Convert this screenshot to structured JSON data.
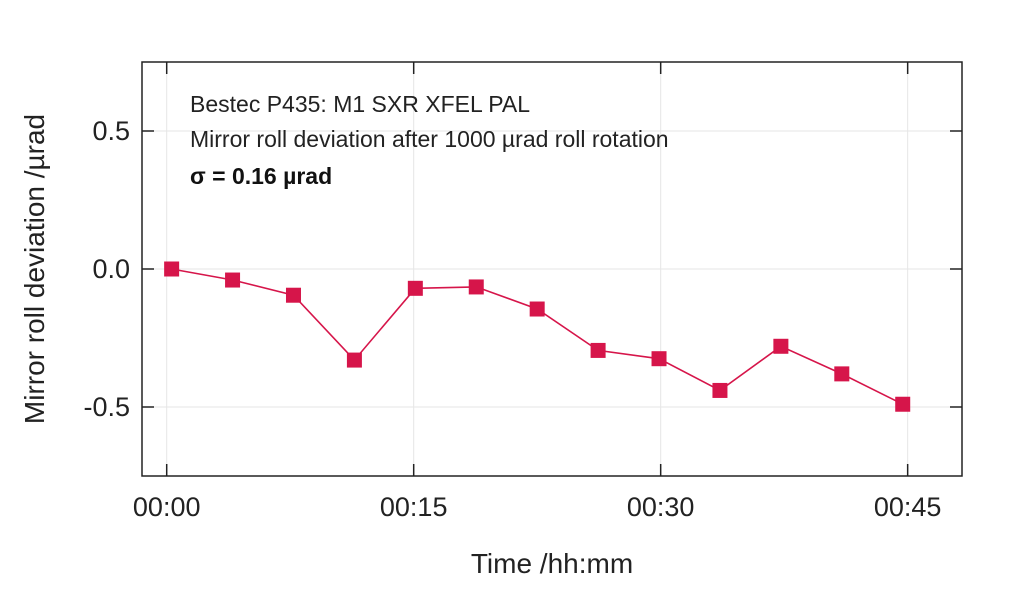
{
  "chart_data": {
    "type": "line",
    "xlabel": "Time /hh:mm",
    "ylabel": "Mirror roll deviation /µrad",
    "xlim": [
      -1.5,
      48.3
    ],
    "ylim": [
      -0.75,
      0.75
    ],
    "x_ticks": [
      {
        "value": 0,
        "label": "00:00"
      },
      {
        "value": 15,
        "label": "00:15"
      },
      {
        "value": 30,
        "label": "00:30"
      },
      {
        "value": 45,
        "label": "00:45"
      }
    ],
    "y_ticks": [
      {
        "value": 0.5,
        "label": "0.5"
      },
      {
        "value": 0.0,
        "label": "0.0"
      },
      {
        "value": -0.5,
        "label": "-0.5"
      }
    ],
    "grid": true,
    "annotations": [
      "Bestec P435: M1 SXR XFEL PAL",
      "Mirror roll deviation after 1000 µrad roll rotation",
      "σ = 0.16 µrad"
    ],
    "series": [
      {
        "color": "#d6154a",
        "marker": "square",
        "x": [
          0.3,
          4.0,
          7.7,
          11.4,
          15.1,
          18.8,
          22.5,
          26.2,
          29.9,
          33.6,
          37.3,
          41.0,
          44.7
        ],
        "y": [
          0.0,
          -0.04,
          -0.095,
          -0.33,
          -0.07,
          -0.065,
          -0.145,
          -0.295,
          -0.325,
          -0.44,
          -0.28,
          -0.38,
          -0.49
        ]
      }
    ]
  }
}
